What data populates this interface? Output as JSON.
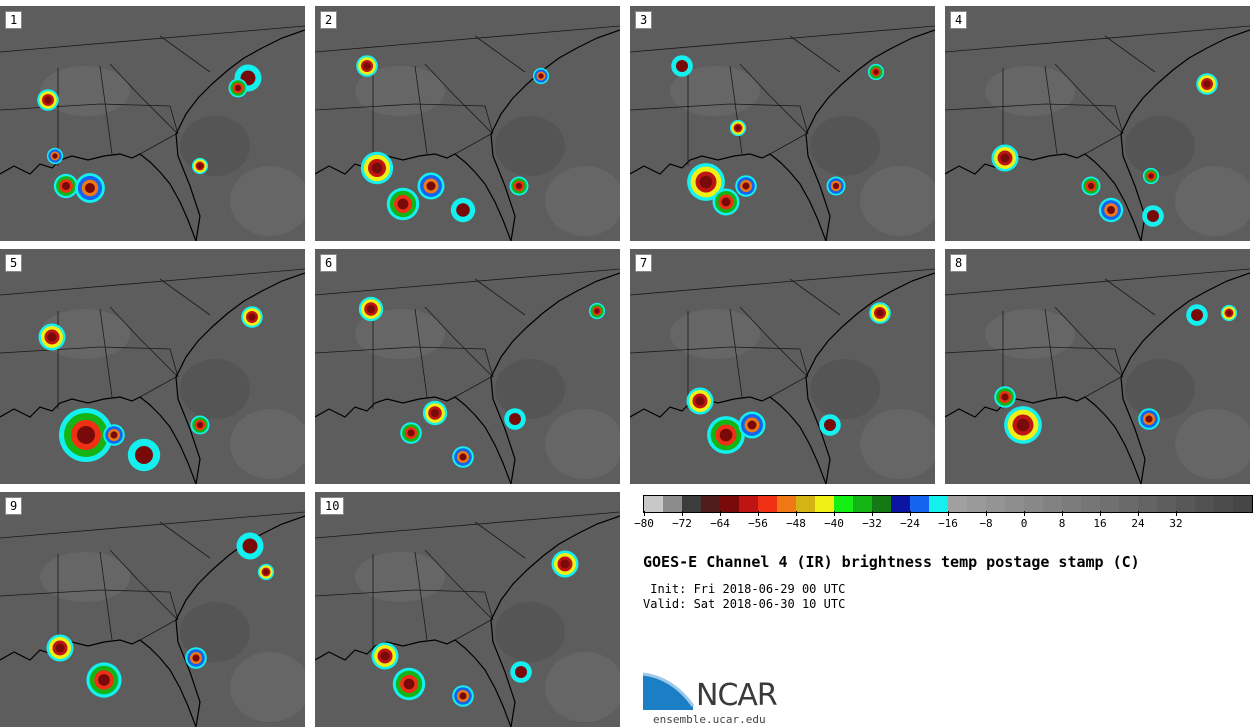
{
  "panels": [
    {
      "label": "1"
    },
    {
      "label": "2"
    },
    {
      "label": "3"
    },
    {
      "label": "4"
    },
    {
      "label": "5"
    },
    {
      "label": "6"
    },
    {
      "label": "7"
    },
    {
      "label": "8"
    },
    {
      "label": "9"
    },
    {
      "label": "10"
    }
  ],
  "colorbar": {
    "colors": [
      "#c8c8c8",
      "#8c8c8c",
      "#3c3c3c",
      "#501c1c",
      "#780a0a",
      "#be1414",
      "#f03014",
      "#f07814",
      "#d4b414",
      "#f0f014",
      "#14f014",
      "#14b414",
      "#147814",
      "#0a14a0",
      "#1464f0",
      "#14f0f0",
      "#a0a0a0",
      "#9a9a9a",
      "#949494",
      "#8e8e8e",
      "#888888",
      "#828282",
      "#7c7c7c",
      "#767676",
      "#707070",
      "#6a6a6a",
      "#646464",
      "#5e5e5e",
      "#585858",
      "#525252",
      "#4c4c4c",
      "#464646"
    ],
    "tick_labels": [
      "-80",
      "-72",
      "-64",
      "-56",
      "-48",
      "-40",
      "-32",
      "-24",
      "-16",
      "-8",
      "0",
      "8",
      "16",
      "24",
      "32"
    ]
  },
  "title": "GOES-E Channel 4 (IR) brightness temp postage stamp (C)",
  "init_text": " Init: Fri 2018-06-29 00 UTC",
  "valid_text": "Valid: Sat 2018-06-30 10 UTC",
  "logo": {
    "name": "NCAR",
    "url": "ensemble.ucar.edu"
  }
}
